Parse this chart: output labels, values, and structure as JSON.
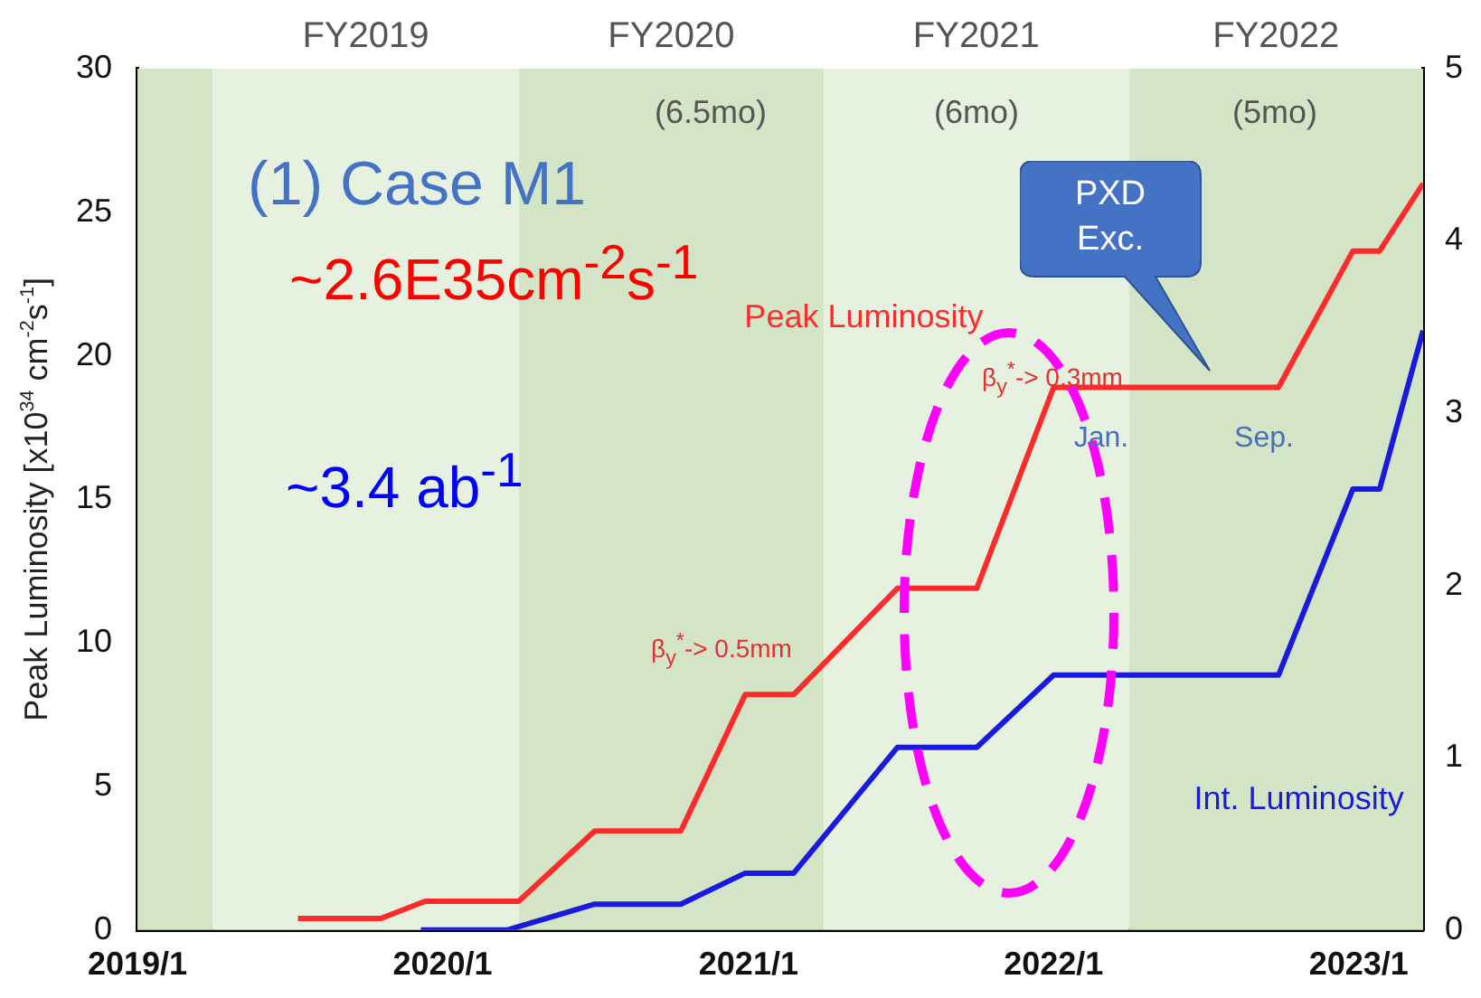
{
  "chart_data": {
    "type": "line",
    "ylabel": "Peak Luminosity [x10$^{34}$ cm$^{-2}$s$^{-1}$]",
    "xlim": [
      "2019-01-01",
      "2023-03-19"
    ],
    "xticks": [
      {
        "value": "2019-01-01",
        "label": "2019/1"
      },
      {
        "value": "2020-01-01",
        "label": "2020/1"
      },
      {
        "value": "2021-01-01",
        "label": "2021/1"
      },
      {
        "value": "2022-01-01",
        "label": "2022/1"
      },
      {
        "value": "2023-01-01",
        "label": "2023/1"
      }
    ],
    "ylim": [
      0,
      30
    ],
    "yticks": [
      0,
      5,
      10,
      15,
      20,
      25,
      30
    ],
    "y2lim": [
      0,
      5
    ],
    "y2ticks": [
      0,
      1,
      2,
      3,
      4,
      5
    ],
    "grid": false,
    "legend": false,
    "series": [
      {
        "name": "Peak Luminosity",
        "color": "#ff2a2a",
        "x": [
          "2019-07-12",
          "2019-10-19",
          "2019-12-11",
          "2020-04-01",
          "2020-07-01",
          "2020-10-12",
          "2020-12-28",
          "2021-02-24",
          "2021-06-28",
          "2021-10-01",
          "2022-01-01",
          "2022-09-27",
          "2022-12-25",
          "2023-01-26",
          "2023-03-19"
        ],
        "values": [
          0.4,
          0.4,
          1.0,
          1.0,
          3.45,
          3.45,
          8.2,
          8.2,
          11.9,
          11.9,
          18.9,
          18.9,
          23.65,
          23.65,
          26
        ]
      },
      {
        "name": "Int. Luminosity",
        "color": "#1a1adf",
        "axis": "y2",
        "x": [
          "2019-12-06",
          "2020-03-18",
          "2020-07-01",
          "2020-10-12",
          "2020-12-28",
          "2021-02-24",
          "2021-06-28",
          "2021-10-01",
          "2022-01-01",
          "2022-09-27",
          "2022-12-25",
          "2023-01-26",
          "2023-03-19"
        ],
        "values": [
          0,
          0,
          0.15,
          0.15,
          0.33,
          0.33,
          1.06,
          1.06,
          1.48,
          1.48,
          2.56,
          2.56,
          3.48
        ]
      }
    ],
    "bands": [
      {
        "axis": "x",
        "from": "2019-01-01",
        "to": "2019-04-01",
        "color": "#d4e5c7"
      },
      {
        "axis": "x",
        "from": "2019-04-01",
        "to": "2020-04-01",
        "label": "FY2019",
        "color": "#e7f1df"
      },
      {
        "axis": "x",
        "from": "2020-04-01",
        "to": "2021-04-01",
        "label": "FY2020",
        "color": "#d4e5c7"
      },
      {
        "axis": "x",
        "from": "2021-04-01",
        "to": "2022-04-01",
        "label": "FY2021",
        "color": "#e7f1df"
      },
      {
        "axis": "x",
        "from": "2022-04-01",
        "to": "2023-03-19",
        "label": "FY2022",
        "color": "#d4e5c7"
      }
    ],
    "annotations": [
      "(1) Case M1",
      "~2.6E35cm$^{-2}$s$^{-1}$",
      "~3.4 ab$^{-1}$",
      "(6.5mo)",
      "(6mo)",
      "(5mo)",
      "PXD Exc.",
      "β$_{y}$$^{*}$-> 0.5mm",
      "β$_{y}$$^{*}$-> 0.3mm",
      "Jan.",
      "Sep."
    ]
  }
}
